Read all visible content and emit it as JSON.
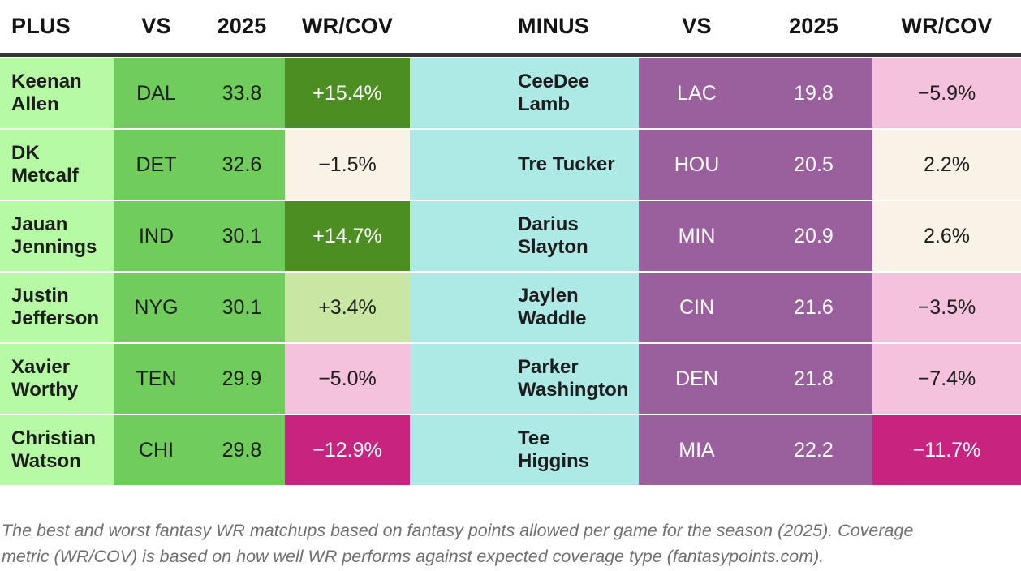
{
  "plus_table": {
    "headers": {
      "name": "PLUS",
      "vs": "VS",
      "season": "2025",
      "wrcov": "WR/COV"
    },
    "rows": [
      {
        "name": "Keenan\nAllen",
        "vs": "DAL",
        "pts": "33.8",
        "cov": "+15.4%",
        "variant": "strong-pos"
      },
      {
        "name": "DK\nMetcalf",
        "vs": "DET",
        "pts": "32.6",
        "cov": "−1.5%",
        "variant": "neutral"
      },
      {
        "name": "Jauan\nJennings",
        "vs": "IND",
        "pts": "30.1",
        "cov": "+14.7%",
        "variant": "strong-pos"
      },
      {
        "name": "Justin\nJefferson",
        "vs": "NYG",
        "pts": "30.1",
        "cov": "+3.4%",
        "variant": "pos"
      },
      {
        "name": "Xavier\nWorthy",
        "vs": "TEN",
        "pts": "29.9",
        "cov": "−5.0%",
        "variant": "neg"
      },
      {
        "name": "Christian\nWatson",
        "vs": "CHI",
        "pts": "29.8",
        "cov": "−12.9%",
        "variant": "strong-neg"
      }
    ]
  },
  "minus_table": {
    "headers": {
      "name": "MINUS",
      "vs": "VS",
      "season": "2025",
      "wrcov": "WR/COV"
    },
    "rows": [
      {
        "name": "CeeDee\nLamb",
        "vs": "LAC",
        "pts": "19.8",
        "cov": "−5.9%",
        "variant": "neg"
      },
      {
        "name": "Tre Tucker",
        "vs": "HOU",
        "pts": "20.5",
        "cov": "2.2%",
        "variant": "neutral"
      },
      {
        "name": "Darius\nSlayton",
        "vs": "MIN",
        "pts": "20.9",
        "cov": "2.6%",
        "variant": "neutral"
      },
      {
        "name": "Jaylen\nWaddle",
        "vs": "CIN",
        "pts": "21.6",
        "cov": "−3.5%",
        "variant": "neg"
      },
      {
        "name": "Parker\nWashington",
        "vs": "DEN",
        "pts": "21.8",
        "cov": "−7.4%",
        "variant": "neg"
      },
      {
        "name": "Tee\nHiggins",
        "vs": "MIA",
        "pts": "22.2",
        "cov": "−11.7%",
        "variant": "strong-neg"
      }
    ]
  },
  "caption": "The best and worst fantasy WR matchups based on fantasy points allowed per game for the season (2025). Coverage metric (WR/COV) is based on how well WR performs against expected coverage type (fantasypoints.com).",
  "colors": {
    "plus_name_bg": "#b6fba3",
    "plus_value_bg": "#70cd5b",
    "cov_strong_pos_bg": "#4c8e22",
    "cov_pos_bg": "#c9e6a2",
    "cov_neutral_bg": "#f8f3e6",
    "cov_neg_bg": "#f4c2dc",
    "cov_strong_neg_bg": "#c92380",
    "minus_name_bg": "#adeae6",
    "minus_value_bg": "#9a5f9d",
    "header_divider": "#333333",
    "caption_text": "#6f6f6f"
  },
  "chart_data": {
    "type": "table",
    "tables": [
      {
        "name": "best_matchups",
        "columns": [
          "PLUS",
          "VS",
          "2025",
          "WR/COV"
        ],
        "rows": [
          [
            "Keenan Allen",
            "DAL",
            33.8,
            "+15.4%"
          ],
          [
            "DK Metcalf",
            "DET",
            32.6,
            "-1.5%"
          ],
          [
            "Jauan Jennings",
            "IND",
            30.1,
            "+14.7%"
          ],
          [
            "Justin Jefferson",
            "NYG",
            30.1,
            "+3.4%"
          ],
          [
            "Xavier Worthy",
            "TEN",
            29.9,
            "-5.0%"
          ],
          [
            "Christian Watson",
            "CHI",
            29.8,
            "-12.9%"
          ]
        ]
      },
      {
        "name": "worst_matchups",
        "columns": [
          "MINUS",
          "VS",
          "2025",
          "WR/COV"
        ],
        "rows": [
          [
            "CeeDee Lamb",
            "LAC",
            19.8,
            "-5.9%"
          ],
          [
            "Tre Tucker",
            "HOU",
            20.5,
            "2.2%"
          ],
          [
            "Darius Slayton",
            "MIN",
            20.9,
            "2.6%"
          ],
          [
            "Jaylen Waddle",
            "CIN",
            21.6,
            "-3.5%"
          ],
          [
            "Parker Washington",
            "DEN",
            21.8,
            "-7.4%"
          ],
          [
            "Tee Higgins",
            "MIA",
            22.2,
            "-11.7%"
          ]
        ]
      }
    ]
  }
}
